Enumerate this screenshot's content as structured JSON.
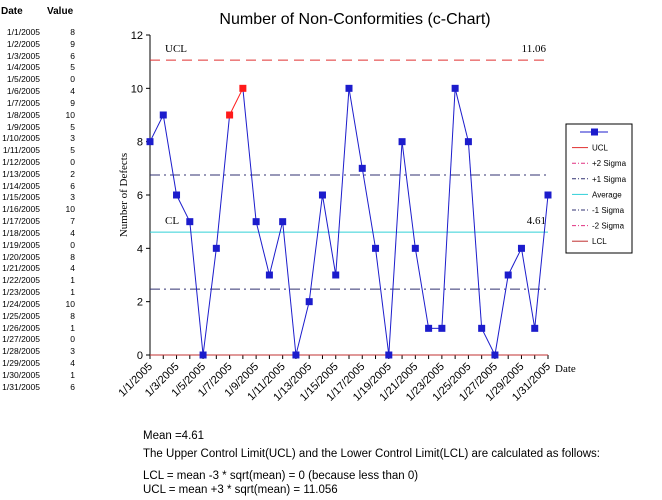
{
  "table": {
    "date_header": "Date",
    "value_header": "Value",
    "rows": [
      {
        "date": "1/1/2005",
        "value": "8"
      },
      {
        "date": "1/2/2005",
        "value": "9"
      },
      {
        "date": "1/3/2005",
        "value": "6"
      },
      {
        "date": "1/4/2005",
        "value": "5"
      },
      {
        "date": "1/5/2005",
        "value": "0"
      },
      {
        "date": "1/6/2005",
        "value": "4"
      },
      {
        "date": "1/7/2005",
        "value": "9"
      },
      {
        "date": "1/8/2005",
        "value": "10"
      },
      {
        "date": "1/9/2005",
        "value": "5"
      },
      {
        "date": "1/10/2005",
        "value": "3"
      },
      {
        "date": "1/11/2005",
        "value": "5"
      },
      {
        "date": "1/12/2005",
        "value": "0"
      },
      {
        "date": "1/13/2005",
        "value": "2"
      },
      {
        "date": "1/14/2005",
        "value": "6"
      },
      {
        "date": "1/15/2005",
        "value": "3"
      },
      {
        "date": "1/16/2005",
        "value": "10"
      },
      {
        "date": "1/17/2005",
        "value": "7"
      },
      {
        "date": "1/18/2005",
        "value": "4"
      },
      {
        "date": "1/19/2005",
        "value": "0"
      },
      {
        "date": "1/20/2005",
        "value": "8"
      },
      {
        "date": "1/21/2005",
        "value": "4"
      },
      {
        "date": "1/22/2005",
        "value": "1"
      },
      {
        "date": "1/23/2005",
        "value": "1"
      },
      {
        "date": "1/24/2005",
        "value": "10"
      },
      {
        "date": "1/25/2005",
        "value": "8"
      },
      {
        "date": "1/26/2005",
        "value": "1"
      },
      {
        "date": "1/27/2005",
        "value": "0"
      },
      {
        "date": "1/28/2005",
        "value": "3"
      },
      {
        "date": "1/29/2005",
        "value": "4"
      },
      {
        "date": "1/30/2005",
        "value": "1"
      },
      {
        "date": "1/31/2005",
        "value": "6"
      }
    ]
  },
  "chart_data": {
    "type": "line",
    "title": "Number of Non-Conformities (c-Chart)",
    "xlabel": "Date",
    "ylabel": "Number of Defects",
    "ylim": [
      0,
      12
    ],
    "yticks": [
      "0",
      "2",
      "4",
      "6",
      "8",
      "10",
      "12"
    ],
    "xtick_labels": [
      "1/1/2005",
      "1/3/2005",
      "1/5/2005",
      "1/7/2005",
      "1/9/2005",
      "1/11/2005",
      "1/13/2005",
      "1/15/2005",
      "1/17/2005",
      "1/19/2005",
      "1/21/2005",
      "1/23/2005",
      "1/25/2005",
      "1/27/2005",
      "1/29/2005",
      "1/31/2005"
    ],
    "x": [
      "1/1/2005",
      "1/2/2005",
      "1/3/2005",
      "1/4/2005",
      "1/5/2005",
      "1/6/2005",
      "1/7/2005",
      "1/8/2005",
      "1/9/2005",
      "1/10/2005",
      "1/11/2005",
      "1/12/2005",
      "1/13/2005",
      "1/14/2005",
      "1/15/2005",
      "1/16/2005",
      "1/17/2005",
      "1/18/2005",
      "1/19/2005",
      "1/20/2005",
      "1/21/2005",
      "1/22/2005",
      "1/23/2005",
      "1/24/2005",
      "1/25/2005",
      "1/26/2005",
      "1/27/2005",
      "1/28/2005",
      "1/29/2005",
      "1/30/2005",
      "1/31/2005"
    ],
    "values": [
      8,
      9,
      6,
      5,
      0,
      4,
      9,
      10,
      5,
      3,
      5,
      0,
      2,
      6,
      3,
      10,
      7,
      4,
      0,
      8,
      4,
      1,
      1,
      10,
      8,
      1,
      0,
      3,
      4,
      1,
      6
    ],
    "highlighted_points": [
      "1/7/2005",
      "1/8/2005"
    ],
    "reference_lines": [
      {
        "name": "UCL",
        "value": 11.056,
        "color": "#e03030",
        "dash": "dashed",
        "label": "UCL",
        "value_label": "11.06"
      },
      {
        "name": "+1 Sigma",
        "value": 6.75,
        "color": "#303070",
        "dash": "dashdot"
      },
      {
        "name": "Average",
        "value": 4.61,
        "color": "#30d0d8",
        "dash": "solid",
        "label": "CL",
        "value_label": "4.61"
      },
      {
        "name": "-1 Sigma",
        "value": 2.47,
        "color": "#303070",
        "dash": "dashdot"
      },
      {
        "name": "LCL",
        "value": 0,
        "color": "#c03030",
        "dash": "solid"
      }
    ],
    "legend": {
      "position": "right",
      "entries": [
        {
          "label": "",
          "color": "#1c1ccc",
          "style": "line-marker"
        },
        {
          "label": "UCL",
          "color": "#e03030",
          "style": "line"
        },
        {
          "label": "+2 Sigma",
          "color": "#e03080",
          "style": "dashdot"
        },
        {
          "label": "+1 Sigma",
          "color": "#303070",
          "style": "dashdot"
        },
        {
          "label": "Average",
          "color": "#30d0d8",
          "style": "line"
        },
        {
          "label": "-1 Sigma",
          "color": "#303070",
          "style": "dashdot"
        },
        {
          "label": "-2 Sigma",
          "color": "#e03080",
          "style": "dashdot"
        },
        {
          "label": "LCL",
          "color": "#c03030",
          "style": "line"
        }
      ]
    },
    "series_color": "#1c1ccc",
    "highlight_color": "#ff1a1a",
    "grid": false
  },
  "notes": {
    "mean": "Mean =4.61",
    "explanation": "The Upper Control Limit(UCL) and the Lower Control Limit(LCL) are calculated as follows:",
    "lcl_formula": "LCL = mean -3 * sqrt(mean) = 0 (because less than 0)",
    "ucl_formula": "UCL = mean +3 * sqrt(mean) = 11.056"
  }
}
